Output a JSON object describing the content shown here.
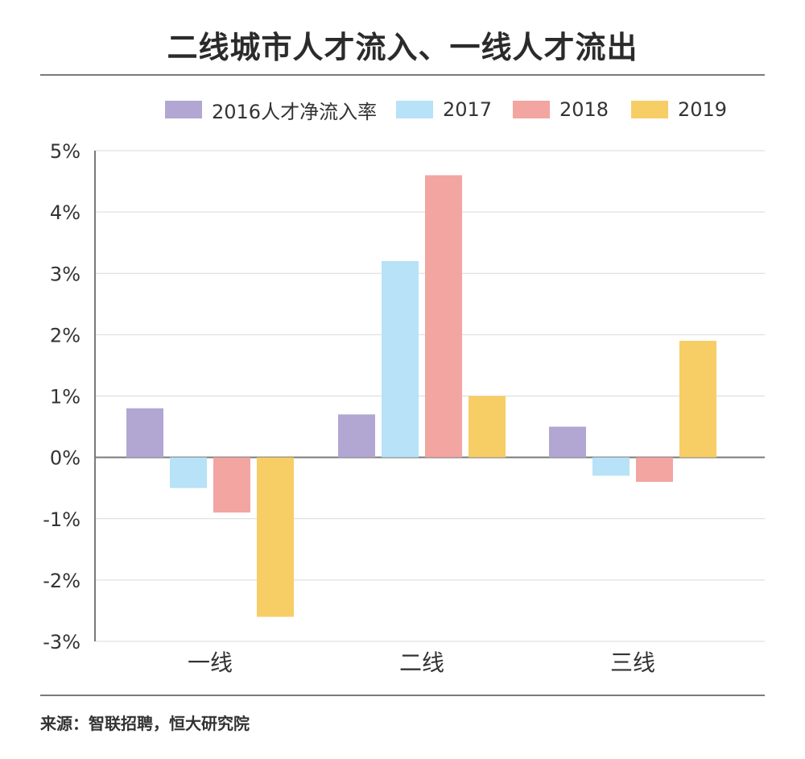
{
  "title": "二线城市人才流入、一线人才流出",
  "source": "来源：智联招聘，恒大研究院",
  "colors": {
    "2016": "#b2a6d2",
    "2017": "#b7e2f8",
    "2018": "#f2a5a1",
    "2019": "#f7cd66",
    "axis": "#7a7a7a",
    "grid": "#d9d9d9",
    "text": "#333333"
  },
  "legend": [
    {
      "label": "2016人才净流入率",
      "color": "#b2a6d2"
    },
    {
      "label": "2017",
      "color": "#b7e2f8"
    },
    {
      "label": "2018",
      "color": "#f2a5a1"
    },
    {
      "label": "2019",
      "color": "#f7cd66"
    }
  ],
  "chart_data": {
    "type": "bar",
    "categories": [
      "一线",
      "二线",
      "三线"
    ],
    "series": [
      {
        "name": "2016人才净流入率",
        "values": [
          0.8,
          0.7,
          0.5
        ]
      },
      {
        "name": "2017",
        "values": [
          -0.5,
          3.2,
          -0.3
        ]
      },
      {
        "name": "2018",
        "values": [
          -0.9,
          4.6,
          -0.4
        ]
      },
      {
        "name": "2019",
        "values": [
          -2.6,
          1.0,
          1.9
        ]
      }
    ],
    "ylim": [
      -3,
      5
    ],
    "yticks": [
      5,
      4,
      3,
      2,
      1,
      0,
      -1,
      -2,
      -3
    ],
    "ytick_labels": [
      "5%",
      "4%",
      "3%",
      "2%",
      "1%",
      "0%",
      "-1%",
      "-2%",
      "-3%"
    ],
    "grid": true,
    "legend_position": "top"
  }
}
